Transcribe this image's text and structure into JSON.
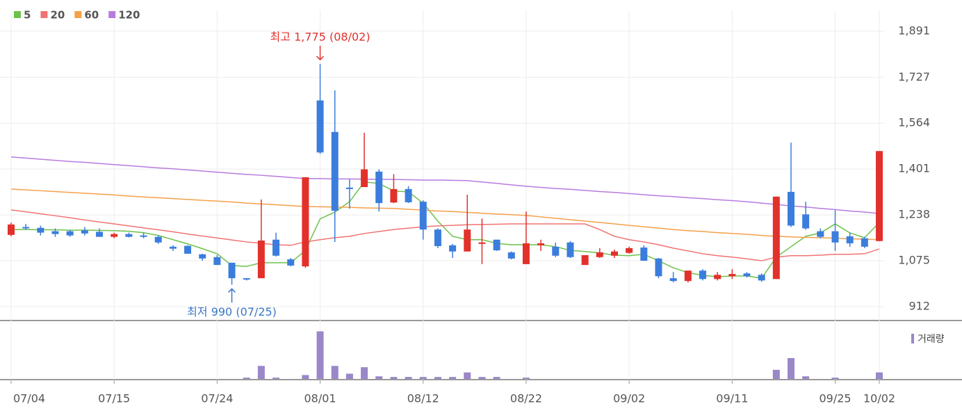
{
  "chart_data": {
    "type": "candlestick",
    "categories": [
      "07/04",
      null,
      null,
      null,
      null,
      null,
      null,
      "07/15",
      null,
      null,
      null,
      null,
      null,
      null,
      "07/24",
      null,
      null,
      null,
      null,
      null,
      null,
      "08/01",
      null,
      null,
      null,
      null,
      null,
      null,
      "08/12",
      null,
      null,
      null,
      null,
      null,
      null,
      "08/22",
      null,
      null,
      null,
      null,
      null,
      null,
      "09/02",
      null,
      null,
      null,
      null,
      null,
      null,
      "09/11",
      null,
      null,
      null,
      null,
      null,
      null,
      "09/25",
      null,
      null,
      "10/02"
    ],
    "open": [
      1167,
      1195,
      1192,
      1180,
      1180,
      1183,
      1178,
      1160,
      1170,
      1165,
      1160,
      1125,
      1128,
      1098,
      1088,
      1068,
      1013,
      1013,
      1150,
      1080,
      1055,
      1645,
      1533,
      1335,
      1337,
      1392,
      1282,
      1330,
      1285,
      1186,
      1130,
      1108,
      1135,
      1150,
      1105,
      1063,
      1130,
      1125,
      1140,
      1060,
      1088,
      1093,
      1103,
      1122,
      1083,
      1013,
      1003,
      1040,
      1010,
      1020,
      1030,
      1025,
      1010,
      1320,
      1240,
      1180,
      1180,
      1162,
      1155,
      1145
    ],
    "high": [
      1211,
      1206,
      1200,
      1190,
      1185,
      1195,
      1190,
      1175,
      1175,
      1175,
      1165,
      1130,
      1130,
      1100,
      1095,
      1068,
      1013,
      1293,
      1175,
      1085,
      1372,
      1775,
      1681,
      1365,
      1530,
      1400,
      1383,
      1340,
      1290,
      1190,
      1135,
      1310,
      1225,
      1150,
      1108,
      1250,
      1150,
      1140,
      1145,
      1095,
      1120,
      1115,
      1125,
      1130,
      1085,
      1035,
      1040,
      1045,
      1035,
      1045,
      1035,
      1030,
      1303,
      1495,
      1285,
      1190,
      1255,
      1175,
      1160,
      1465
    ],
    "low": [
      1162,
      1185,
      1165,
      1160,
      1160,
      1165,
      1160,
      1155,
      1158,
      1155,
      1135,
      1110,
      1100,
      1075,
      1060,
      990,
      1005,
      1013,
      1090,
      1055,
      1050,
      1455,
      1142,
      1260,
      1337,
      1250,
      1280,
      1280,
      1150,
      1120,
      1085,
      1108,
      1063,
      1110,
      1080,
      1063,
      1110,
      1088,
      1085,
      1060,
      1085,
      1085,
      1100,
      1075,
      1013,
      998,
      998,
      1005,
      1005,
      1010,
      1015,
      1000,
      1010,
      1195,
      1185,
      1155,
      1110,
      1125,
      1120,
      1145
    ],
    "close": [
      1204,
      1190,
      1175,
      1170,
      1165,
      1172,
      1160,
      1170,
      1160,
      1160,
      1140,
      1118,
      1100,
      1083,
      1060,
      1013,
      1008,
      1147,
      1093,
      1058,
      1372,
      1460,
      1253,
      1330,
      1400,
      1280,
      1330,
      1283,
      1186,
      1127,
      1108,
      1186,
      1140,
      1112,
      1083,
      1137,
      1137,
      1093,
      1088,
      1095,
      1105,
      1108,
      1120,
      1075,
      1020,
      1003,
      1040,
      1010,
      1025,
      1028,
      1020,
      1005,
      1303,
      1200,
      1190,
      1160,
      1140,
      1137,
      1125,
      1465
    ],
    "up_color": "#e2302b",
    "down_color": "#3b7ddd",
    "moving_averages": [
      {
        "name": "5",
        "color": "#6cc24a",
        "values": [
          1186,
          1186,
          1185,
          1185,
          1184,
          1184,
          1183,
          1182,
          1180,
          1175,
          1165,
          1150,
          1135,
          1118,
          1100,
          1058,
          1055,
          1068,
          1068,
          1068,
          1112,
          1224,
          1248,
          1285,
          1355,
          1350,
          1323,
          1320,
          1280,
          1216,
          1162,
          1150,
          1150,
          1137,
          1132,
          1132,
          1132,
          1125,
          1112,
          1108,
          1103,
          1095,
          1093,
          1098,
          1075,
          1050,
          1033,
          1023,
          1018,
          1021,
          1021,
          1013,
          1088,
          1125,
          1162,
          1174,
          1206,
          1174,
          1157,
          1211
        ]
      },
      {
        "name": "20",
        "color": "#f07373",
        "values": [
          1256,
          1249,
          1242,
          1235,
          1228,
          1220,
          1213,
          1206,
          1199,
          1192,
          1185,
          1178,
          1170,
          1163,
          1156,
          1149,
          1142,
          1137,
          1132,
          1130,
          1142,
          1150,
          1157,
          1162,
          1172,
          1179,
          1186,
          1191,
          1196,
          1199,
          1201,
          1203,
          1204,
          1205,
          1206,
          1206,
          1206,
          1206,
          1206,
          1206,
          1186,
          1162,
          1150,
          1142,
          1132,
          1120,
          1110,
          1100,
          1093,
          1088,
          1082,
          1075,
          1088,
          1093,
          1093,
          1095,
          1098,
          1098,
          1100,
          1117
        ]
      },
      {
        "name": "60",
        "color": "#f5a04a",
        "values": [
          1330,
          1327,
          1324,
          1321,
          1318,
          1315,
          1312,
          1309,
          1305,
          1302,
          1299,
          1296,
          1293,
          1290,
          1287,
          1284,
          1280,
          1277,
          1274,
          1271,
          1268,
          1267,
          1266,
          1265,
          1263,
          1262,
          1261,
          1258,
          1255,
          1252,
          1250,
          1247,
          1244,
          1241,
          1239,
          1236,
          1231,
          1226,
          1221,
          1216,
          1211,
          1206,
          1201,
          1196,
          1191,
          1186,
          1182,
          1179,
          1175,
          1172,
          1169,
          1165,
          1162,
          1160,
          1158,
          1157,
          1155,
          1153,
          1152,
          1150
        ]
      },
      {
        "name": "120",
        "color": "#b77be0",
        "values": [
          1444,
          1440,
          1436,
          1432,
          1428,
          1425,
          1421,
          1417,
          1413,
          1409,
          1405,
          1402,
          1398,
          1394,
          1390,
          1386,
          1382,
          1379,
          1375,
          1371,
          1367,
          1367,
          1366,
          1366,
          1365,
          1365,
          1364,
          1363,
          1362,
          1362,
          1361,
          1360,
          1355,
          1350,
          1345,
          1340,
          1336,
          1332,
          1329,
          1325,
          1321,
          1318,
          1314,
          1310,
          1306,
          1303,
          1299,
          1296,
          1292,
          1289,
          1285,
          1280,
          1275,
          1270,
          1266,
          1261,
          1257,
          1252,
          1248,
          1243
        ]
      }
    ],
    "volume": {
      "name": "거래량",
      "color": "#9a87c8",
      "ylim": [
        0,
        80
      ],
      "values": [
        0,
        0,
        0,
        0,
        0,
        0,
        0,
        0,
        0,
        0,
        0,
        0,
        0,
        0,
        0,
        0,
        2,
        20,
        2,
        0,
        6,
        73,
        20,
        8,
        18,
        4,
        3,
        3,
        3,
        3,
        3,
        10,
        3,
        3,
        0,
        2,
        0,
        0,
        0,
        0,
        0,
        0,
        0,
        0,
        0,
        0,
        0,
        0,
        0,
        0,
        0,
        0,
        14,
        32,
        4,
        0,
        2,
        0,
        0,
        10
      ]
    },
    "high_label": "최고 1,775 (08/02)",
    "low_label": "최저 990 (07/25)",
    "ylim": [
      865,
      1965
    ],
    "yticks": [
      912,
      {
        "value": 1075,
        "label": "1,075"
      },
      {
        "value": 1238,
        "label": "1,238"
      },
      {
        "value": 1401,
        "label": "1,401"
      },
      {
        "value": 1564,
        "label": "1,564"
      },
      {
        "value": 1727,
        "label": "1,727"
      },
      {
        "value": 1891,
        "label": "1,891"
      }
    ],
    "grid": true
  }
}
